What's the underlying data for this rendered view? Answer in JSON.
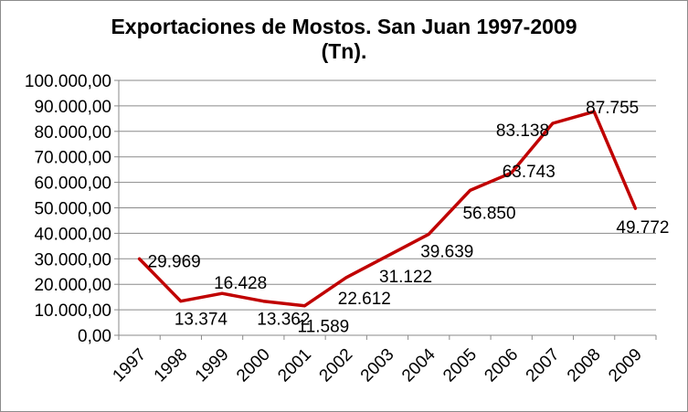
{
  "title_line1": "Exportaciones de Mostos. San Juan 1997-2009",
  "title_line2": "(Tn).",
  "chart_data": {
    "type": "line",
    "title": "Exportaciones de Mostos. San Juan 1997-2009 (Tn).",
    "categories": [
      "1997",
      "1998",
      "1999",
      "2000",
      "2001",
      "2002",
      "2003",
      "2004",
      "2005",
      "2006",
      "2007",
      "2008",
      "2009"
    ],
    "values": [
      29969,
      13374,
      16428,
      13362,
      11589,
      22612,
      31122,
      39639,
      56850,
      63743,
      83138,
      87755,
      49772
    ],
    "data_labels": [
      "29.969",
      "13.374",
      "16.428",
      "13.362",
      "11.589",
      "22.612",
      "31.122",
      "39.639",
      "56.850",
      "63.743",
      "83.138",
      "87.755",
      "49.772"
    ],
    "y_tick_labels": [
      "0,00",
      "10.000,00",
      "20.000,00",
      "30.000,00",
      "40.000,00",
      "50.000,00",
      "60.000,00",
      "70.000,00",
      "80.000,00",
      "90.000,00",
      "100.000,00"
    ],
    "ylim": [
      0,
      100000
    ],
    "y_tick_step": 10000,
    "xlabel": "",
    "ylabel": "",
    "grid": true,
    "legend": "none",
    "line_color": "#c00000"
  }
}
